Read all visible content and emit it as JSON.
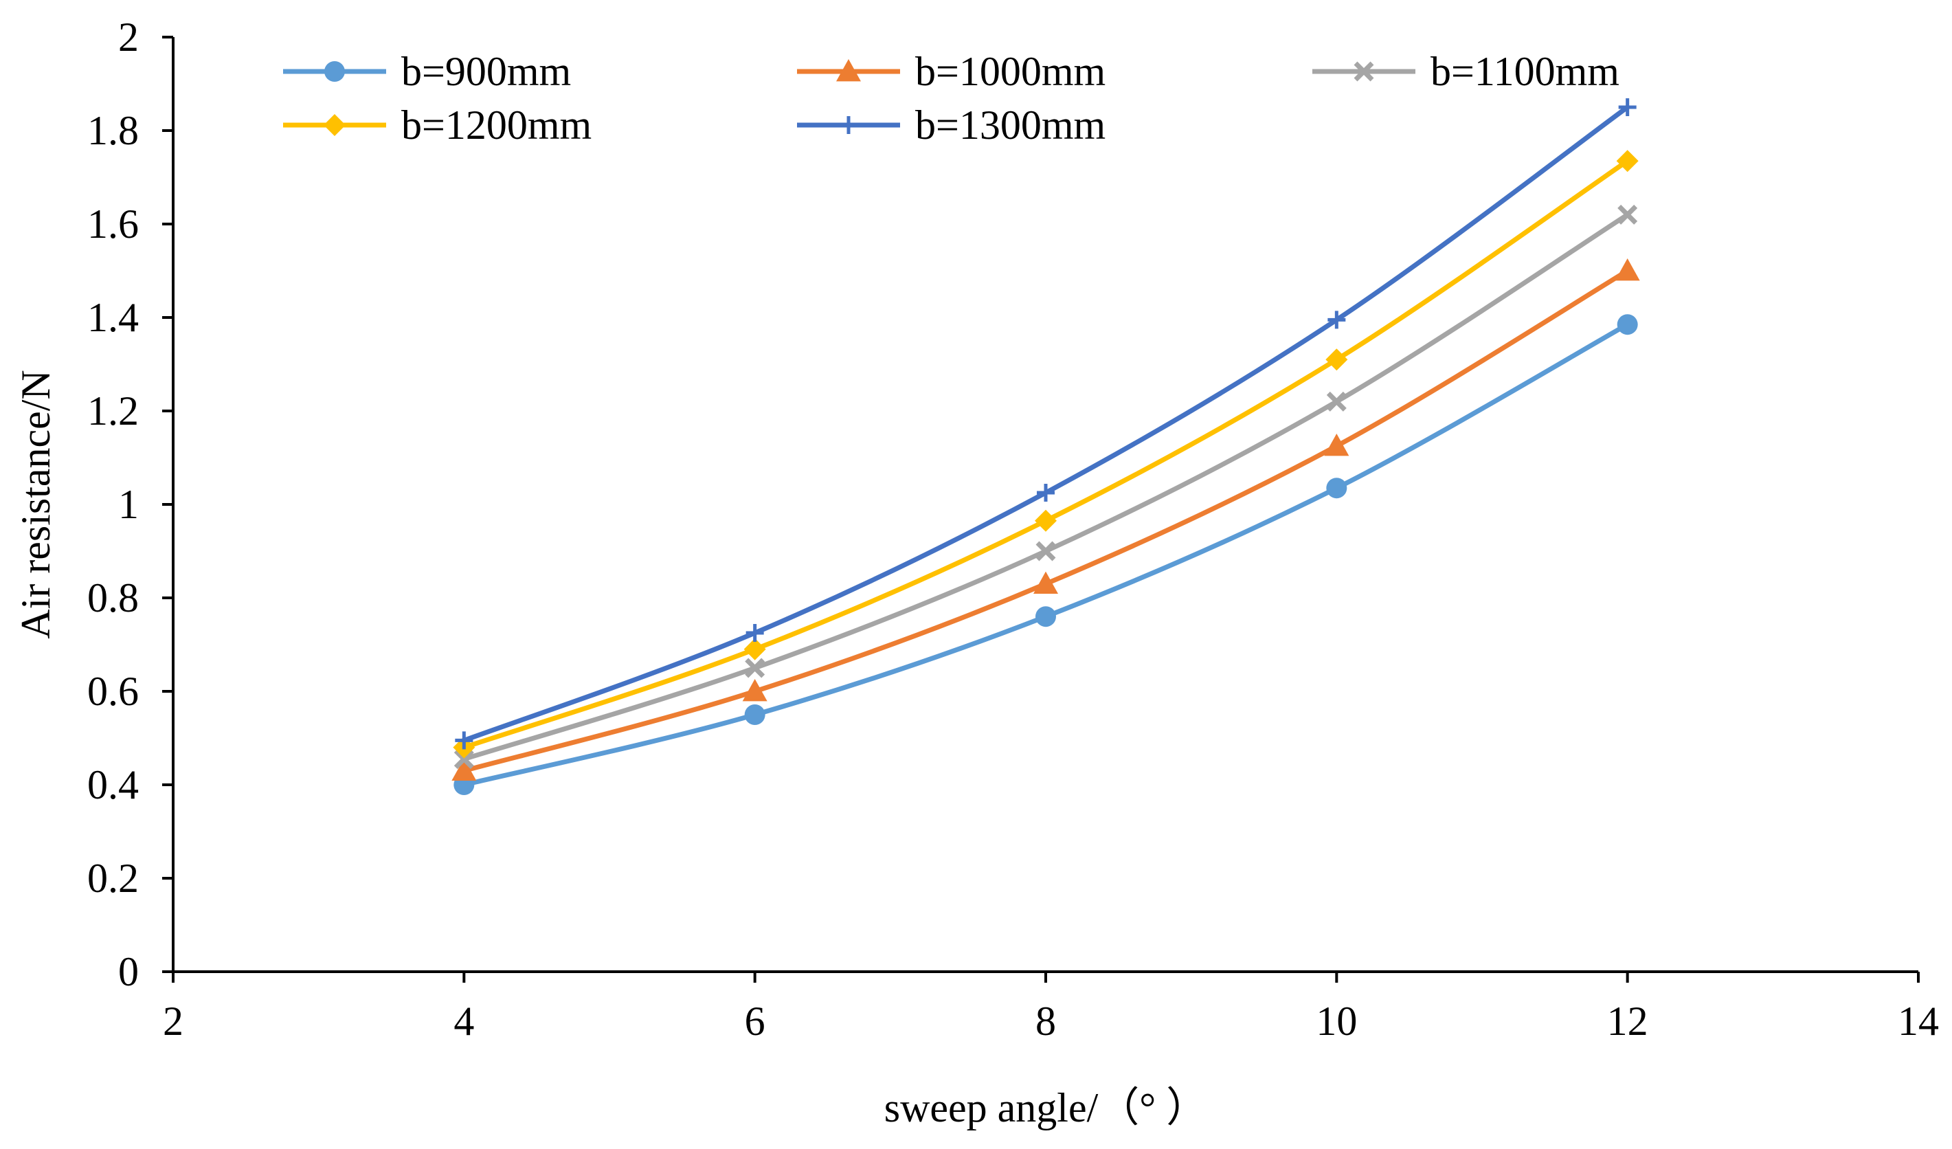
{
  "chart_data": {
    "type": "line",
    "title": "",
    "xlabel": "sweep angle/（°  ）",
    "ylabel": "Air resistance/N",
    "xlim": [
      2,
      14
    ],
    "ylim": [
      0,
      2
    ],
    "xticks": [
      2,
      4,
      6,
      8,
      10,
      12,
      14
    ],
    "yticks": [
      0,
      0.2,
      0.4,
      0.6,
      0.8,
      1,
      1.2,
      1.4,
      1.6,
      1.8,
      2
    ],
    "xtick_labels": [
      "2",
      "4",
      "6",
      "8",
      "10",
      "12",
      "14"
    ],
    "ytick_labels": [
      "0",
      "0.2",
      "0.4",
      "0.6",
      "0.8",
      "1",
      "1.2",
      "1.4",
      "1.6",
      "1.8",
      "2"
    ],
    "grid": false,
    "legend_position": "top",
    "x": [
      4,
      6,
      8,
      10,
      12
    ],
    "series": [
      {
        "name": "b=900mm",
        "color": "#5B9BD5",
        "marker": "circle",
        "values": [
          0.4,
          0.55,
          0.76,
          1.035,
          1.385
        ]
      },
      {
        "name": "b=1000mm",
        "color": "#ED7D31",
        "marker": "triangle",
        "values": [
          0.43,
          0.6,
          0.83,
          1.125,
          1.5
        ]
      },
      {
        "name": "b=1100mm",
        "color": "#A5A5A5",
        "marker": "cross",
        "values": [
          0.455,
          0.65,
          0.9,
          1.22,
          1.62
        ]
      },
      {
        "name": "b=1200mm",
        "color": "#FFC000",
        "marker": "diamond",
        "values": [
          0.48,
          0.69,
          0.965,
          1.31,
          1.735
        ]
      },
      {
        "name": "b=1300mm",
        "color": "#4472C4",
        "marker": "plus",
        "values": [
          0.495,
          0.725,
          1.025,
          1.395,
          1.85
        ]
      }
    ]
  }
}
